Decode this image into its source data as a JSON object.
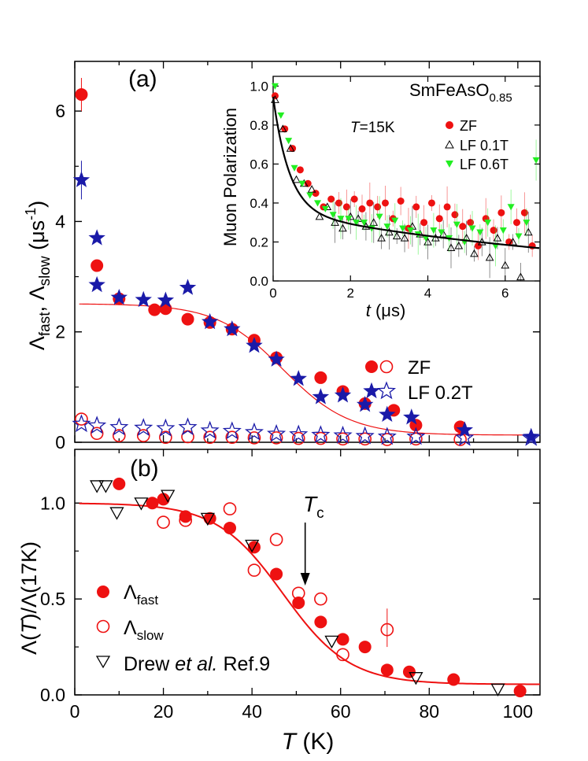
{
  "chart_data": [
    {
      "id": "a",
      "type": "scatter",
      "panel_label": "(a)",
      "ylabel_parts": {
        "base1": "Λ",
        "sub1": "fast",
        "sep": ", ",
        "base2": "Λ",
        "sub2": "slow",
        "unit_open": " (μs",
        "unit_sup": "-1",
        "unit_close": ")"
      },
      "xlim": [
        0,
        105
      ],
      "ylim": [
        0,
        6.9
      ],
      "yticks": [
        0,
        2,
        4,
        6
      ],
      "legend": [
        "ZF",
        "LF 0.2T"
      ],
      "series": [
        {
          "name": "ZF",
          "role": "fast",
          "marker": "filled-circle",
          "color": "#ee1111",
          "x": [
            1.5,
            5,
            10,
            18,
            20.5,
            25.5,
            30.5,
            35.5,
            40.5,
            45.5,
            55.5,
            60.5,
            65.5,
            72,
            77,
            87
          ],
          "y": [
            6.3,
            3.2,
            2.6,
            2.4,
            2.42,
            2.23,
            2.17,
            2.05,
            1.85,
            1.53,
            1.17,
            0.92,
            0.7,
            0.58,
            0.31,
            0.28
          ]
        },
        {
          "name": "ZF",
          "role": "slow",
          "marker": "open-circle",
          "color": "#ee1111",
          "x": [
            1.5,
            5,
            10,
            15.5,
            20.5,
            25.5,
            30.5,
            35.5,
            40.5,
            45.5,
            50.5,
            55.5,
            60.5,
            65.5,
            70.5,
            77,
            87
          ],
          "y": [
            0.42,
            0.16,
            0.12,
            0.12,
            0.09,
            0.1,
            0.09,
            0.09,
            0.08,
            0.08,
            0.07,
            0.07,
            0.06,
            0.06,
            0.05,
            0.06,
            0.05
          ]
        },
        {
          "name": "LF 0.2T",
          "role": "fast",
          "marker": "filled-star",
          "color": "#1a1aa8",
          "x": [
            1.5,
            5,
            5,
            10,
            15.5,
            20.5,
            25.5,
            30.5,
            35.5,
            40.5,
            45.5,
            50.5,
            55.5,
            60.5,
            65.5,
            70.5,
            76,
            88,
            103
          ],
          "y": [
            4.75,
            3.7,
            2.85,
            2.62,
            2.58,
            2.57,
            2.8,
            2.18,
            2.05,
            1.75,
            1.5,
            1.15,
            0.82,
            0.85,
            0.68,
            0.5,
            0.45,
            0.22,
            0.1
          ]
        },
        {
          "name": "LF 0.2T",
          "role": "slow",
          "marker": "open-star",
          "color": "#1a1aa8",
          "x": [
            1.5,
            5,
            10,
            15.5,
            20.5,
            25.5,
            30.5,
            35.5,
            40.5,
            45.5,
            50.5,
            55.5,
            60.5,
            65.5,
            70.5,
            77,
            88,
            103
          ],
          "y": [
            0.33,
            0.3,
            0.27,
            0.26,
            0.25,
            0.27,
            0.21,
            0.2,
            0.18,
            0.15,
            0.14,
            0.13,
            0.12,
            0.11,
            0.1,
            0.1,
            0.08,
            0.08
          ]
        }
      ],
      "fit_curve": {
        "color": "#ee1111",
        "amplitude": 2.38,
        "baseline": 0.13,
        "tc": 47,
        "width": 7.5
      }
    },
    {
      "id": "inset",
      "type": "scatter",
      "title_parts": {
        "base": "SmFeAsO",
        "sub": "0.85"
      },
      "temperature_label_parts": {
        "italic": "T",
        "rest": "=15K"
      },
      "xlabel_parts": {
        "italic": "t",
        "rest": " (μs)"
      },
      "ylabel": "Muon Polarization",
      "xlim": [
        0,
        6.9
      ],
      "ylim": [
        0,
        1.05
      ],
      "xticks": [
        0,
        2,
        4,
        6
      ],
      "yticks": [
        0.0,
        0.2,
        0.4,
        0.6,
        0.8,
        1.0
      ],
      "legend": [
        "ZF",
        "LF 0.1T",
        "LF 0.6T"
      ],
      "series": [
        {
          "name": "ZF",
          "marker": "filled-circle",
          "color": "#ee1111",
          "x": [
            0.05,
            0.3,
            0.5,
            0.7,
            0.9,
            1.1,
            1.3,
            1.5,
            1.7,
            1.9,
            2.1,
            2.3,
            2.5,
            2.7,
            2.9,
            3.1,
            3.3,
            3.5,
            3.7,
            3.9,
            4.1,
            4.3,
            4.5,
            4.7,
            4.9,
            5.1,
            5.3,
            5.5,
            5.7,
            5.9,
            6.1,
            6.3,
            6.5,
            6.7
          ],
          "y": [
            0.95,
            0.78,
            0.68,
            0.57,
            0.5,
            0.45,
            0.38,
            0.42,
            0.4,
            0.38,
            0.42,
            0.37,
            0.4,
            0.38,
            0.4,
            0.32,
            0.41,
            0.27,
            0.38,
            0.3,
            0.4,
            0.32,
            0.38,
            0.34,
            0.28,
            0.3,
            0.18,
            0.32,
            0.26,
            0.35,
            0.2,
            0.3,
            0.35,
            0.18
          ]
        },
        {
          "name": "LF 0.1T",
          "marker": "open-triangle",
          "color": "#000000",
          "x": [
            0.05,
            0.25,
            0.45,
            0.6,
            0.8,
            1.0,
            1.2,
            1.4,
            1.6,
            1.8,
            2.0,
            2.2,
            2.4,
            2.6,
            2.8,
            3.0,
            3.2,
            3.4,
            3.6,
            3.8,
            4.0,
            4.2,
            4.4,
            4.6,
            4.8,
            5.0,
            5.2,
            5.4,
            5.6,
            5.8,
            6.0,
            6.2,
            6.4,
            6.6
          ],
          "y": [
            0.93,
            0.78,
            0.68,
            0.52,
            0.5,
            0.47,
            0.33,
            0.38,
            0.3,
            0.27,
            0.33,
            0.32,
            0.28,
            0.3,
            0.22,
            0.25,
            0.23,
            0.22,
            0.28,
            0.24,
            0.2,
            0.22,
            0.24,
            0.17,
            0.18,
            0.22,
            0.14,
            0.2,
            0.12,
            0.22,
            0.08,
            0.2,
            0.02,
            0.25
          ]
        },
        {
          "name": "LF 0.6T",
          "marker": "filled-triangle-down",
          "color": "#22ee22",
          "x": [
            0.05,
            0.2,
            0.4,
            0.55,
            0.75,
            0.95,
            1.15,
            1.35,
            1.55,
            1.75,
            1.95,
            2.15,
            2.35,
            2.55,
            2.75,
            2.95,
            3.15,
            3.35,
            3.55,
            3.75,
            3.95,
            4.15,
            4.35,
            4.55,
            4.75,
            4.95,
            5.15,
            5.35,
            5.55,
            5.75,
            5.95,
            6.15,
            6.35,
            6.55,
            6.8
          ],
          "y": [
            1.0,
            0.85,
            0.72,
            0.58,
            0.5,
            0.44,
            0.4,
            0.37,
            0.34,
            0.32,
            0.32,
            0.3,
            0.3,
            0.27,
            0.33,
            0.28,
            0.31,
            0.27,
            0.26,
            0.24,
            0.22,
            0.26,
            0.25,
            0.22,
            0.29,
            0.2,
            0.27,
            0.25,
            0.3,
            0.18,
            0.26,
            0.38,
            0.23,
            0.3,
            0.62
          ]
        }
      ],
      "fit_curve": {
        "color": "#000000",
        "a0": 0.945,
        "fast_frac": 0.62,
        "fast_rate": 2.4,
        "slow_rate": 0.11
      }
    },
    {
      "id": "b",
      "type": "scatter",
      "panel_label": "(b)",
      "ylabel_parts": {
        "p1": "Λ(",
        "italic": "T",
        "p2": ")/Λ(17K)"
      },
      "xlabel_parts": {
        "italic": "T",
        "rest": " (K)"
      },
      "xlim": [
        0,
        105
      ],
      "ylim": [
        0,
        1.28
      ],
      "xticks": [
        0,
        20,
        40,
        60,
        80,
        100
      ],
      "yticks": [
        0.0,
        0.5,
        1.0
      ],
      "tc_label_parts": {
        "italic": "T",
        "sub": "c"
      },
      "tc_arrow_x": 52,
      "legend": [
        {
          "base": "Λ",
          "sub": "fast"
        },
        {
          "base": "Λ",
          "sub": "slow"
        },
        {
          "pre": "Drew ",
          "italic": "et al.",
          "post": " Ref.9"
        }
      ],
      "series": [
        {
          "name": "fast",
          "marker": "filled-circle",
          "color": "#ee1111",
          "x": [
            10,
            17.5,
            20,
            25,
            30.5,
            35,
            40.5,
            45.5,
            50.5,
            55.5,
            60.5,
            65.5,
            70.5,
            75.5,
            85.5,
            100.5
          ],
          "y": [
            1.1,
            1.0,
            1.02,
            0.93,
            0.92,
            0.87,
            0.77,
            0.63,
            0.48,
            0.38,
            0.29,
            0.25,
            0.13,
            0.12,
            0.08,
            0.02
          ]
        },
        {
          "name": "slow",
          "marker": "open-circle",
          "color": "#ee1111",
          "x": [
            20,
            25,
            35,
            40.5,
            45.5,
            50.5,
            55.5,
            60.5,
            70.5
          ],
          "y": [
            0.9,
            0.91,
            0.97,
            0.65,
            0.81,
            0.53,
            0.5,
            0.21,
            0.34
          ]
        },
        {
          "name": "Drew et al.",
          "marker": "open-triangle-down",
          "color": "#000000",
          "x": [
            5,
            7,
            9.5,
            15,
            21,
            30,
            40,
            58,
            77,
            95.5
          ],
          "y": [
            1.09,
            1.09,
            0.95,
            1.0,
            1.04,
            0.92,
            0.78,
            0.28,
            0.09,
            0.03
          ]
        }
      ],
      "fit_curve": {
        "color": "#ee1111",
        "amplitude": 0.945,
        "baseline": 0.055,
        "tc": 47,
        "width": 7.5
      }
    }
  ]
}
